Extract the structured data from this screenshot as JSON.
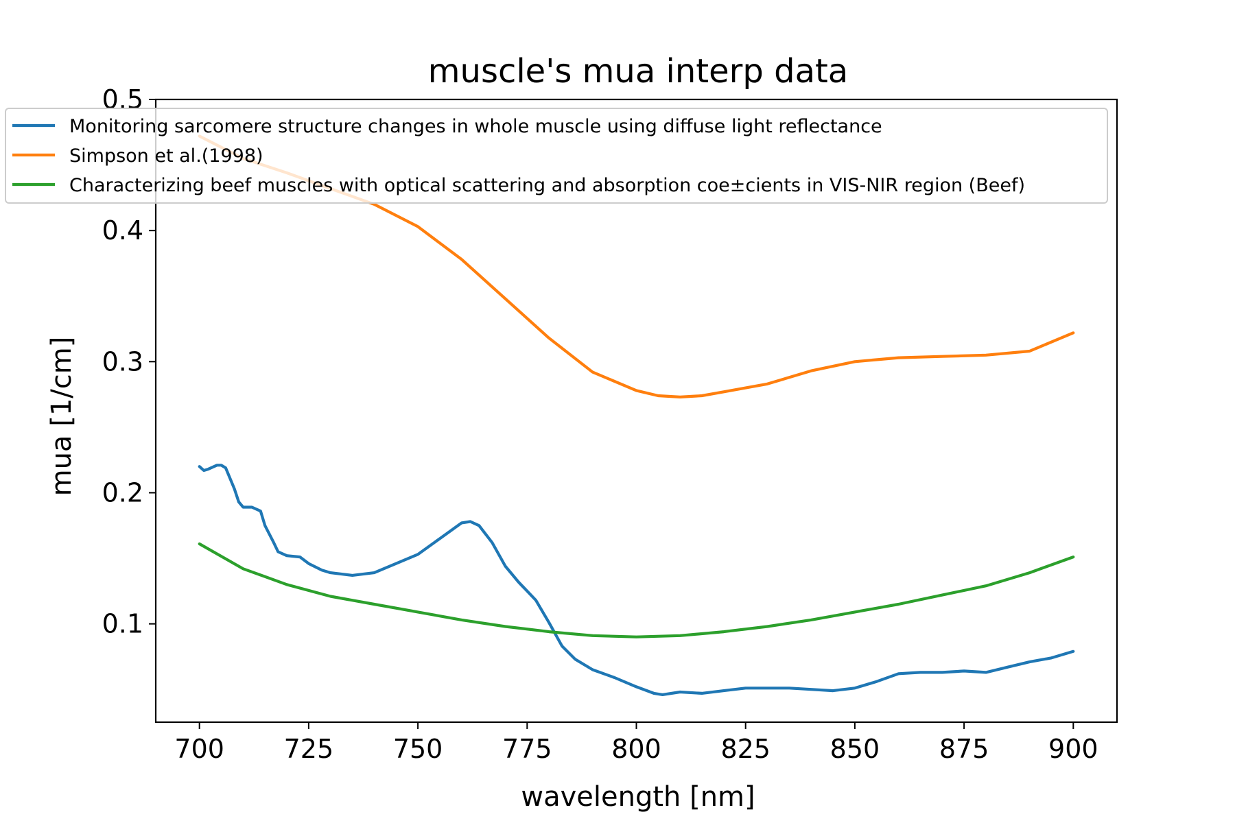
{
  "chart_data": {
    "type": "line",
    "title": "muscle's mua interp data",
    "xlabel": "wavelength [nm]",
    "ylabel": "mua [1/cm]",
    "xlim": [
      690,
      910
    ],
    "ylim": [
      0.025,
      0.5
    ],
    "xticks": [
      700,
      725,
      750,
      775,
      800,
      825,
      850,
      875,
      900
    ],
    "xtick_labels": [
      "700",
      "725",
      "750",
      "775",
      "800",
      "825",
      "850",
      "875",
      "900"
    ],
    "yticks": [
      0.1,
      0.2,
      0.3,
      0.4,
      0.5
    ],
    "ytick_labels": [
      "0.1",
      "0.2",
      "0.3",
      "0.4",
      "0.5"
    ],
    "legend_position": "top-left",
    "series": [
      {
        "name": "Monitoring sarcomere structure changes in whole muscle using diffuse light reflectance",
        "color": "#1f77b4",
        "x": [
          700,
          701,
          702,
          704,
          705,
          706,
          708,
          709,
          710,
          712,
          714,
          715,
          717,
          718,
          720,
          723,
          725,
          728,
          730,
          735,
          740,
          745,
          750,
          755,
          760,
          762,
          764,
          767,
          770,
          773,
          777,
          780,
          783,
          786,
          790,
          795,
          800,
          804,
          806,
          810,
          815,
          820,
          825,
          830,
          835,
          840,
          845,
          850,
          855,
          860,
          865,
          870,
          875,
          880,
          885,
          890,
          895,
          900
        ],
        "y": [
          0.22,
          0.217,
          0.218,
          0.221,
          0.221,
          0.219,
          0.203,
          0.193,
          0.189,
          0.189,
          0.186,
          0.175,
          0.162,
          0.155,
          0.152,
          0.151,
          0.146,
          0.141,
          0.139,
          0.137,
          0.139,
          0.146,
          0.153,
          0.165,
          0.177,
          0.178,
          0.175,
          0.162,
          0.144,
          0.132,
          0.118,
          0.101,
          0.083,
          0.073,
          0.065,
          0.059,
          0.052,
          0.047,
          0.046,
          0.048,
          0.047,
          0.049,
          0.051,
          0.051,
          0.051,
          0.05,
          0.049,
          0.051,
          0.056,
          0.062,
          0.063,
          0.063,
          0.064,
          0.063,
          0.067,
          0.071,
          0.074,
          0.079
        ]
      },
      {
        "name": "Simpson et al.(1998)",
        "color": "#ff7f0e",
        "x": [
          700,
          710,
          720,
          730,
          740,
          750,
          760,
          770,
          780,
          790,
          800,
          805,
          810,
          815,
          820,
          830,
          840,
          850,
          860,
          870,
          880,
          890,
          900
        ],
        "y": [
          0.472,
          0.455,
          0.444,
          0.432,
          0.42,
          0.403,
          0.378,
          0.348,
          0.318,
          0.292,
          0.278,
          0.274,
          0.273,
          0.274,
          0.277,
          0.283,
          0.293,
          0.3,
          0.303,
          0.304,
          0.305,
          0.308,
          0.322
        ]
      },
      {
        "name": "Characterizing beef muscles with optical scattering and absorption coe±cients in VIS-NIR region (Beef)",
        "color": "#2ca02c",
        "x": [
          700,
          710,
          720,
          730,
          740,
          750,
          760,
          770,
          780,
          790,
          800,
          810,
          820,
          830,
          840,
          850,
          860,
          870,
          880,
          890,
          900
        ],
        "y": [
          0.161,
          0.142,
          0.13,
          0.121,
          0.115,
          0.109,
          0.103,
          0.098,
          0.094,
          0.091,
          0.09,
          0.091,
          0.094,
          0.098,
          0.103,
          0.109,
          0.115,
          0.122,
          0.129,
          0.139,
          0.151
        ]
      }
    ]
  }
}
